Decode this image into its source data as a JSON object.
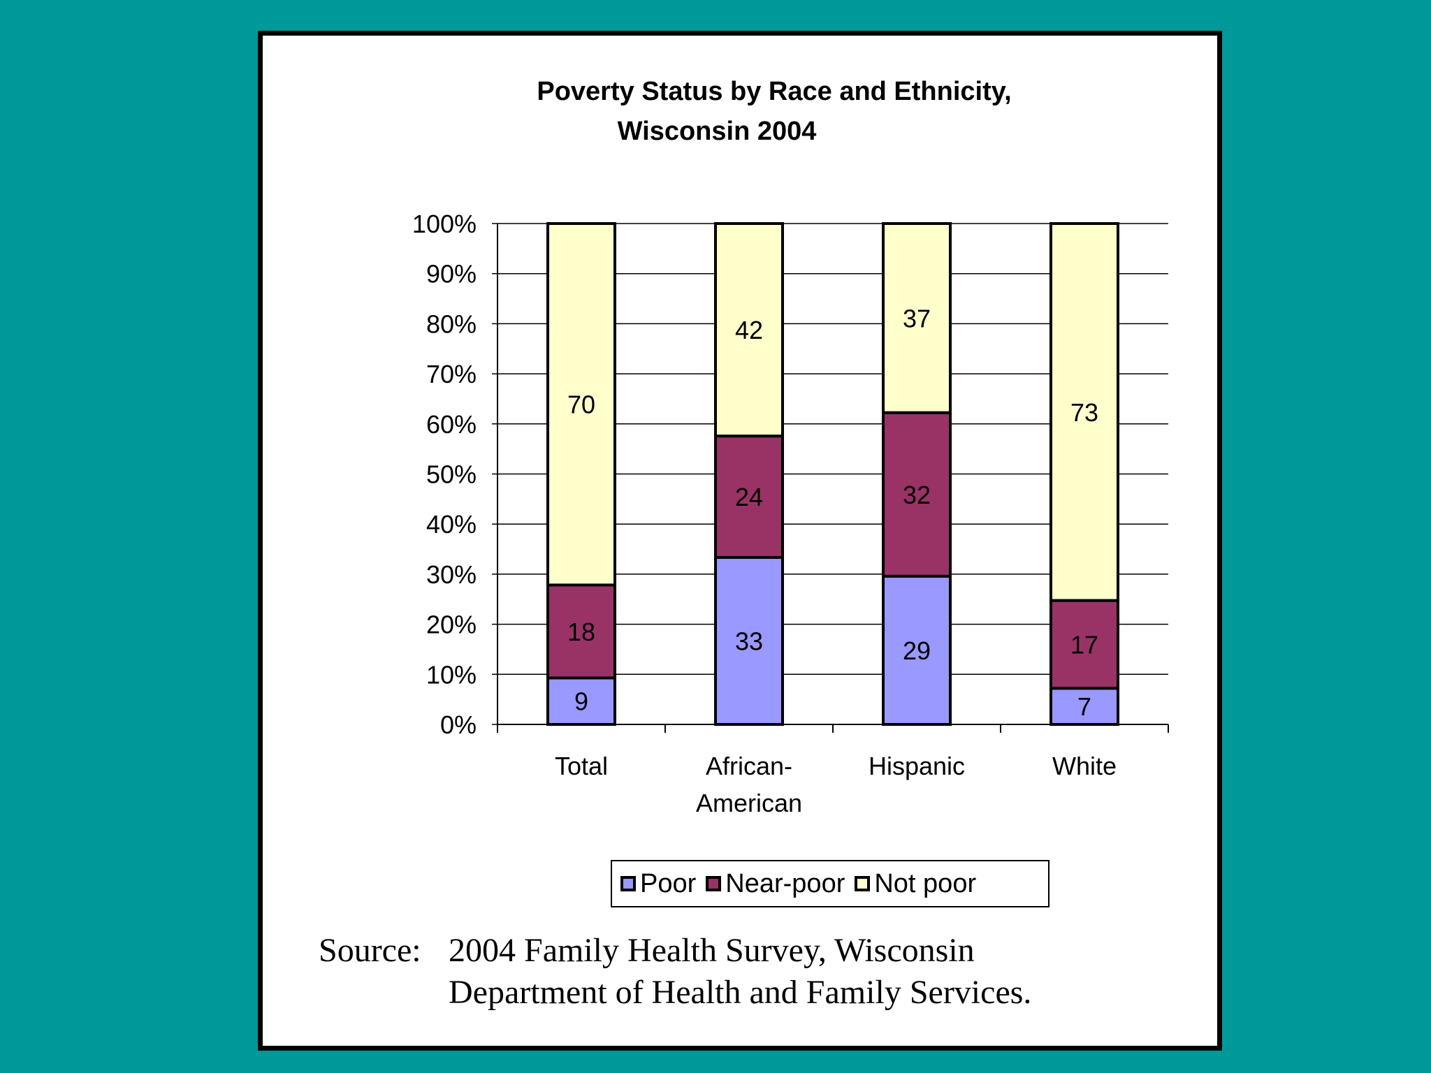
{
  "chart_data": {
    "type": "bar",
    "stacked": true,
    "title": "Poverty Status by Race and Ethnicity, Wisconsin 2004",
    "title_lines": [
      "Poverty Status by Race and Ethnicity,",
      "Wisconsin 2004"
    ],
    "categories": [
      "Total",
      "African-American",
      "Hispanic",
      "White"
    ],
    "category_label_lines": [
      [
        "Total"
      ],
      [
        "African-",
        "American"
      ],
      [
        "Hispanic"
      ],
      [
        "White"
      ]
    ],
    "series": [
      {
        "name": "Poor",
        "color": "#9999ff",
        "values": [
          9,
          33,
          29,
          7
        ]
      },
      {
        "name": "Near-poor",
        "color": "#993366",
        "values": [
          18,
          24,
          32,
          17
        ]
      },
      {
        "name": "Not poor",
        "color": "#ffffcc",
        "values": [
          70,
          42,
          37,
          73
        ]
      }
    ],
    "ylim": [
      0,
      100
    ],
    "yticks": [
      "0%",
      "10%",
      "20%",
      "30%",
      "40%",
      "50%",
      "60%",
      "70%",
      "80%",
      "90%",
      "100%"
    ],
    "ylabel": "",
    "xlabel": "",
    "grid": true,
    "legend_position": "bottom"
  },
  "legend": {
    "items": [
      {
        "label": "Poor",
        "color": "#9999ff"
      },
      {
        "label": "Near-poor",
        "color": "#993366"
      },
      {
        "label": "Not poor",
        "color": "#ffffcc"
      }
    ]
  },
  "source": {
    "label": "Source:",
    "line1": "2004 Family Health Survey, Wisconsin",
    "line2": "Department of Health and Family Services."
  },
  "colors": {
    "background": "#009999",
    "panel": "#ffffff"
  }
}
